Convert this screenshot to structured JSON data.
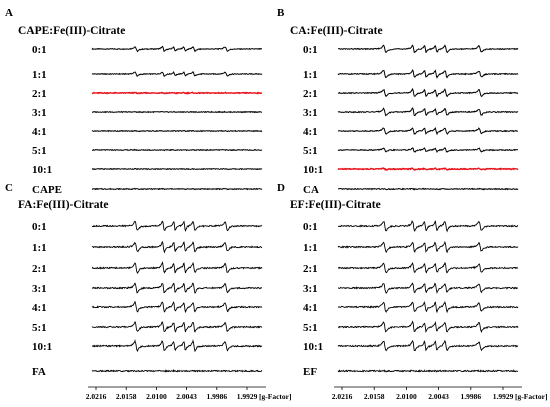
{
  "chart_data": [
    {
      "type": "line",
      "panel": "A",
      "title": "CAPE:Fe(III)-Citrate",
      "series": [
        {
          "name": "0:1",
          "intensity": 0.75,
          "color": "#000000"
        },
        {
          "name": "1:1",
          "intensity": 0.65,
          "color": "#000000"
        },
        {
          "name": "2:1",
          "intensity": 0.1,
          "color": "#e8141c"
        },
        {
          "name": "3:1",
          "intensity": 0.06,
          "color": "#000000"
        },
        {
          "name": "4:1",
          "intensity": 0.06,
          "color": "#000000"
        },
        {
          "name": "5:1",
          "intensity": 0.06,
          "color": "#000000"
        },
        {
          "name": "10:1",
          "intensity": 0.06,
          "color": "#000000"
        },
        {
          "name": "CAPE",
          "intensity": 0.08,
          "color": "#000000"
        }
      ],
      "xticks": [],
      "xlabel": ""
    },
    {
      "type": "line",
      "panel": "B",
      "title": "CA:Fe(III)-Citrate",
      "series": [
        {
          "name": "0:1",
          "intensity": 1.0,
          "color": "#000000"
        },
        {
          "name": "1:1",
          "intensity": 1.0,
          "color": "#000000"
        },
        {
          "name": "2:1",
          "intensity": 1.0,
          "color": "#000000"
        },
        {
          "name": "3:1",
          "intensity": 1.0,
          "color": "#000000"
        },
        {
          "name": "4:1",
          "intensity": 0.85,
          "color": "#000000"
        },
        {
          "name": "5:1",
          "intensity": 0.55,
          "color": "#000000"
        },
        {
          "name": "10:1",
          "intensity": 0.18,
          "color": "#e8141c"
        },
        {
          "name": "CA",
          "intensity": 0.06,
          "color": "#000000"
        }
      ],
      "xticks": [],
      "xlabel": ""
    },
    {
      "type": "line",
      "panel": "C",
      "title": "FA:Fe(III)-Citrate",
      "series": [
        {
          "name": "0:1",
          "intensity": 1.0,
          "color": "#000000"
        },
        {
          "name": "1:1",
          "intensity": 1.0,
          "color": "#000000"
        },
        {
          "name": "2:1",
          "intensity": 1.0,
          "color": "#000000"
        },
        {
          "name": "3:1",
          "intensity": 1.0,
          "color": "#000000"
        },
        {
          "name": "4:1",
          "intensity": 1.0,
          "color": "#000000"
        },
        {
          "name": "5:1",
          "intensity": 1.0,
          "color": "#000000"
        },
        {
          "name": "10:1",
          "intensity": 1.0,
          "color": "#000000"
        },
        {
          "name": "FA",
          "intensity": 0.05,
          "color": "#000000"
        }
      ],
      "xticks": [
        "2.0216",
        "2.0158",
        "2.0100",
        "2.0043",
        "1.9986",
        "1.9929"
      ],
      "xlabel": "[g-Factor]"
    },
    {
      "type": "line",
      "panel": "D",
      "title": "EF:Fe(III)-Citrate",
      "series": [
        {
          "name": "0:1",
          "intensity": 1.0,
          "color": "#000000"
        },
        {
          "name": "1:1",
          "intensity": 1.0,
          "color": "#000000"
        },
        {
          "name": "2:1",
          "intensity": 1.0,
          "color": "#000000"
        },
        {
          "name": "3:1",
          "intensity": 1.0,
          "color": "#000000"
        },
        {
          "name": "4:1",
          "intensity": 1.0,
          "color": "#000000"
        },
        {
          "name": "5:1",
          "intensity": 1.0,
          "color": "#000000"
        },
        {
          "name": "10:1",
          "intensity": 1.0,
          "color": "#000000"
        },
        {
          "name": "EF",
          "intensity": 0.05,
          "color": "#000000"
        }
      ],
      "xticks": [
        "2.0216",
        "2.0158",
        "2.0100",
        "2.0043",
        "1.9986",
        "1.9929"
      ],
      "xlabel": "[g-Factor]"
    }
  ]
}
